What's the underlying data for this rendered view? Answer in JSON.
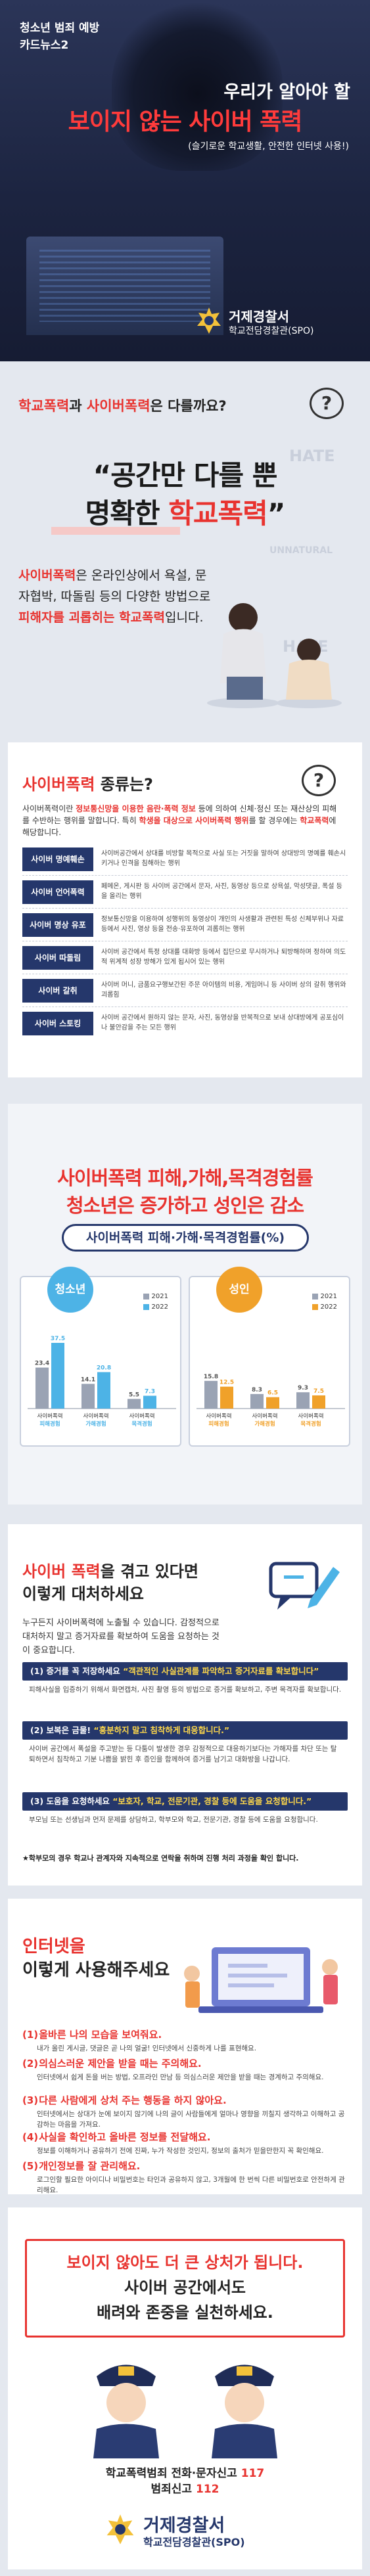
{
  "hero": {
    "series": [
      "청소년 범죄 예방",
      "카드뉴스2"
    ],
    "subtitle": "우리가 알아야 할",
    "title": "보이지 않는 사이버 폭력",
    "tagline": "(슬기로운 학교생활, 안전한 인터넷 사용!)",
    "org": "거제경찰서",
    "org_sub": "학교전담경찰관(SPO)"
  },
  "intro": {
    "question_a": "학교폭력",
    "question_b": "과 ",
    "question_c": "사이버폭력",
    "question_d": "은 다를까요?",
    "bubble": "?",
    "quote_1": "“공간만 다를 뿐",
    "quote_2a": "명확한 ",
    "quote_2b": "학교폭력",
    "quote_2c": "”",
    "desc_1": "사이버폭력",
    "desc_2": "은 온라인상에서 욕설, 문자협박, 따돌림 등의 다양한 방법으로 ",
    "desc_3": "피해자를 괴롭히는 학교폭력",
    "desc_4": "입니다.",
    "bg_words": [
      "HATE",
      "HATE",
      "UNNATURAL",
      "HATE"
    ]
  },
  "types": {
    "heading_a": "사이버폭력 ",
    "heading_b": "종류는?",
    "bubble": "?",
    "intro_a": "사이버폭력이란 ",
    "intro_b": "정보통신망을 이용한 음란·폭력 정보",
    "intro_c": " 등에 의하여 신체·정신 또는 재산상의 피해를 수반하는 행위를 말합니다. 특히 ",
    "intro_d": "학생을 대상으로 사이버폭력 행위",
    "intro_e": "를 할 경우에는 ",
    "intro_f": "학교폭력",
    "intro_g": "에 해당합니다.",
    "items": [
      {
        "label": "사이버 명예훼손",
        "text": "사이버공간에서 상대를 비방할 목적으로 사실 또는 거짓을 말하여 상대방의 명예를 훼손시키거나 인격을 침해하는 행위"
      },
      {
        "label": "사이버 언어폭력",
        "text": "페메온, 게시판 등 사이버 공간에서 문자, 사진, 동영상 등으로 상욕설, 악성댓글, 폭설 등을 올리는 행위"
      },
      {
        "label": "사이버 명상 유포",
        "text": "정보통신망을 이용하여 성행위의 동영상이 개인의 사생활과 관련된 특성 신체부위나 자료 등에서 사진, 영상 등을 전송·유포하여 괴롭히는 행위"
      },
      {
        "label": "사이버 따돌림",
        "text": "사이버 공간에서 특정 상대를 대화방 등에서 집단으로 무시하거나 퇴방해하며 정하여 의도적 위계적 성장 방해가 있게 됩시어 있는 행위"
      },
      {
        "label": "사이버 갈취",
        "text": "사이버 머니, 금품요구행보간된 주문 아이템의 비용, 게임머니 등 사이버 상의 갈취 행위와 괴롭힘"
      },
      {
        "label": "사이버 스토킹",
        "text": "사이버 공간에서 원하지 않는 문자, 사진, 동영상을 반복적으로 보내 상대방에게 공포심이나 불안감을 주는 모든 행위"
      }
    ]
  },
  "stats": {
    "title_1": "사이버폭력 피해,가해,목격경험률",
    "title_2": "청소년은 증가하고 성인은 감소",
    "pill": "사이버폭력 피해·가해·목격경험률(%)",
    "legend": [
      "2021",
      "2022"
    ],
    "colors": {
      "y2021": "#9aa3b4",
      "y2022": "#4db3e6",
      "youth": "#4db3e6",
      "adult": "#f0a12a",
      "navy": "#25376b"
    }
  },
  "chart_data": [
    {
      "type": "bar",
      "title": "청소년",
      "categories": [
        "사이버폭력 피해경험",
        "사이버폭력 가해경험",
        "사이버폭력 목격경험"
      ],
      "series": [
        {
          "name": "2021",
          "values": [
            23.4,
            14.1,
            5.5
          ]
        },
        {
          "name": "2022",
          "values": [
            37.5,
            20.8,
            7.3
          ]
        }
      ],
      "ylim": [
        0,
        45
      ]
    },
    {
      "type": "bar",
      "title": "성인",
      "categories": [
        "사이버폭력 피해경험",
        "사이버폭력 가해경험",
        "사이버폭력 목격경험"
      ],
      "series": [
        {
          "name": "2021",
          "values": [
            15.8,
            8.3,
            9.3
          ]
        },
        {
          "name": "2022",
          "values": [
            12.5,
            6.5,
            7.5
          ]
        }
      ],
      "ylim": [
        0,
        45
      ]
    }
  ],
  "response": {
    "heading_1a": "사이버 폭력",
    "heading_1b": "을 겪고 있다면",
    "heading_2": "이렇게 대처하세요",
    "intro": "누구든지 사이버폭력에 노출될 수 있습니다. 감정적으로 대처하지 말고 증거자료를 확보하여 도움을 요청하는 것이 중요합니다.",
    "steps": [
      {
        "num": "(1)",
        "title": "증거를 꼭 저장하세요",
        "quote": "“객관적인 사실관계를 파악하고 증거자료를 확보합니다”",
        "text": "피해사실을 입증하기 위해서 화면캡처, 사진 촬영 등의 방법으로 증거를 확보하고, 주변 목격자를 확보합니다."
      },
      {
        "num": "(2)",
        "title": "보복은 금물!",
        "quote": "“흥분하지 말고 침착하게 대응합니다.”",
        "text": "사이버 공간에서 폭설을 주고받는 등 다툼이 발생한 경우 감정적으로 대응하기보다는 가해자를 차단 또는 탈퇴하면서 침착하고 기분 나쁨을 밝힌 후 증인을 함께하여 증거를 남기고 대화방을 나갑니다."
      },
      {
        "num": "(3)",
        "title": "도움을 요청하세요",
        "quote": "“보호자, 학교, 전문기관, 경찰 등에 도움을 요청합니다.”",
        "text": "부모님 또는 선생님과 먼저 문제를 상담하고, 학부모와 학교, 전문기관, 경찰 등에 도움을 요청합니다."
      }
    ],
    "footnote": "★학부모의 경우 학교나 관계자와 지속적으로 연락을 취하며 진행 처리 과정을 확인 합니다."
  },
  "usage": {
    "heading_1": "인터넷을",
    "heading_2": "이렇게 사용해주세요",
    "tips": [
      {
        "num": "(1)",
        "title": "올바른 나의 모습을 보여줘요.",
        "text": "내가 올린 게시글, 댓글은 곧 나의 얼굴! 인터넷에서 신중하게 나를 표현해요."
      },
      {
        "num": "(2)",
        "title": "의심스러운 제안을 받을 때는 주의해요.",
        "text": "인터넷에서 쉽게 돈을 버는 방법, 오프라인 만남 등 의심스러운 제안을 받을 때는 경계하고 주의해요."
      },
      {
        "num": "(3)",
        "title": "다른 사람에게 상처 주는 행동을 하지 않아요.",
        "text": "인터넷에서는 상대가 눈에 보이지 않기에 나의 글이 사람들에게 얼마나 영향을 끼칠지 생각하고 이해하고 공감하는 마음을 가져요."
      },
      {
        "num": "(4)",
        "title": "사실을 확인하고 올바른 정보를 전달해요.",
        "text": "정보를 이해하거나 공유하기 전에 진짜, 누가 작성한 것인지, 정보의 출처가 믿을만한지 꼭 확인해요."
      },
      {
        "num": "(5)",
        "title": "개인정보를 잘 관리해요.",
        "text": "로그인할 필요한 아이디나 비밀번호는 타인과 공유하지 않고, 3개월에 한 번씩 다른 비밀번호로 안전하게 관리해요."
      }
    ]
  },
  "closing": {
    "line_1": "보이지 않아도 더 큰 상처가 됩니다.",
    "line_2": "사이버 공간에서도",
    "line_3": "배려와 존중을 실천하세요.",
    "phone_1a": "학교폭력범죄 전화·문자신고 ",
    "phone_1b": "117",
    "phone_2a": "범죄신고 ",
    "phone_2b": "112",
    "org": "거제경찰서",
    "org_sub": "학교전담경찰관(SPO)"
  }
}
